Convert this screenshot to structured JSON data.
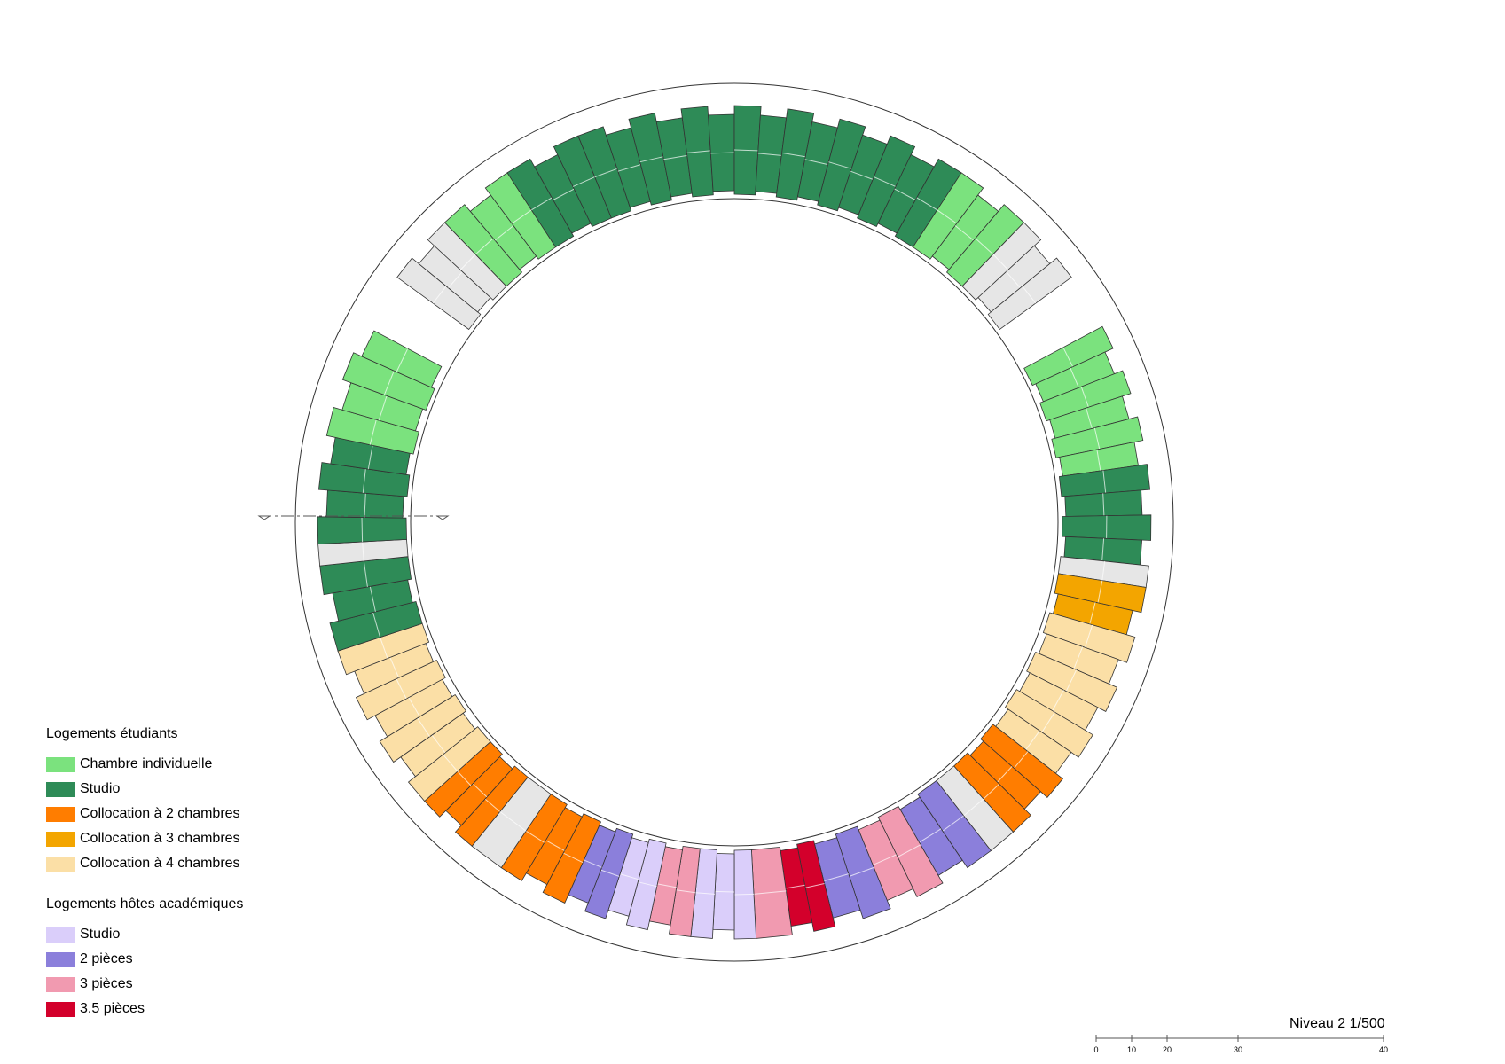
{
  "legend": {
    "student_heading": "Logements étudiants",
    "student_items": [
      {
        "label": "Chambre individuelle",
        "color": "#7be27e"
      },
      {
        "label": "Studio",
        "color": "#2e8b57"
      },
      {
        "label": "Collocation à 2 chambres",
        "color": "#ff7d00"
      },
      {
        "label": "Collocation à 3 chambres",
        "color": "#f3a500"
      },
      {
        "label": "Collocation à 4 chambres",
        "color": "#fbdfa6"
      }
    ],
    "academic_heading": "Logements hôtes académiques",
    "academic_items": [
      {
        "label": "Studio",
        "color": "#dacefa"
      },
      {
        "label": "2 pièces",
        "color": "#8b7fdb"
      },
      {
        "label": "3 pièces",
        "color": "#f19ab0"
      },
      {
        "label": "3.5 pièces",
        "color": "#d3002b"
      }
    ]
  },
  "caption": "Niveau 2  1/500",
  "scale_ticks": [
    "0",
    "10",
    "20",
    "30",
    "40"
  ],
  "colors": {
    "service": "#e6e6e6",
    "chambre": "#7be27e",
    "studio_etudiant": "#2e8b57",
    "coloc2": "#ff7d00",
    "coloc3": "#f3a500",
    "coloc4": "#fbdfa6",
    "studio_hote": "#dacefa",
    "deux_pieces": "#8b7fdb",
    "trois_pieces": "#f19ab0",
    "trois_cinq_pieces": "#d3002b"
  }
}
